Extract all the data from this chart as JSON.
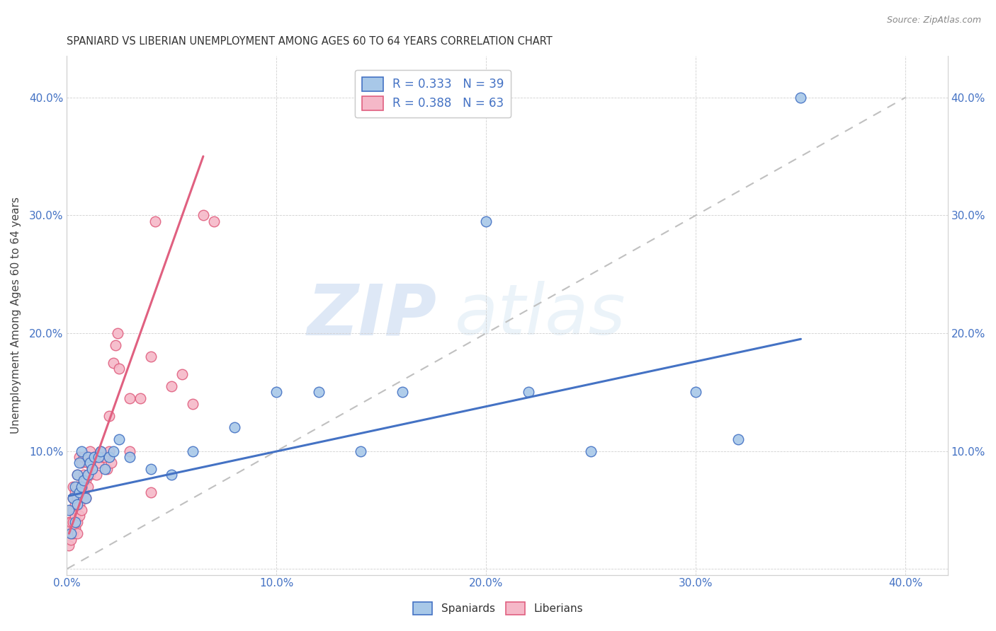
{
  "title": "SPANIARD VS LIBERIAN UNEMPLOYMENT AMONG AGES 60 TO 64 YEARS CORRELATION CHART",
  "source": "Source: ZipAtlas.com",
  "ylabel": "Unemployment Among Ages 60 to 64 years",
  "xlim": [
    0.0,
    0.42
  ],
  "ylim": [
    -0.005,
    0.435
  ],
  "x_ticks": [
    0.0,
    0.1,
    0.2,
    0.3,
    0.4
  ],
  "y_ticks": [
    0.0,
    0.1,
    0.2,
    0.3,
    0.4
  ],
  "x_tick_labels": [
    "0.0%",
    "10.0%",
    "20.0%",
    "30.0%",
    "40.0%"
  ],
  "y_tick_labels": [
    "",
    "10.0%",
    "20.0%",
    "30.0%",
    "40.0%"
  ],
  "spaniards_color": "#a8c8e8",
  "liberians_color": "#f5b8c8",
  "spaniards_R": 0.333,
  "spaniards_N": 39,
  "liberians_R": 0.388,
  "liberians_N": 63,
  "legend_label_spaniards": "Spaniards",
  "legend_label_liberians": "Liberians",
  "trend_color_spaniards": "#4472c4",
  "trend_color_liberians": "#e06080",
  "watermark_zip": "ZIP",
  "watermark_atlas": "atlas",
  "background_color": "#ffffff",
  "spaniards_x": [
    0.001,
    0.002,
    0.003,
    0.004,
    0.004,
    0.005,
    0.005,
    0.006,
    0.006,
    0.007,
    0.007,
    0.008,
    0.009,
    0.01,
    0.01,
    0.011,
    0.012,
    0.013,
    0.015,
    0.016,
    0.018,
    0.02,
    0.022,
    0.025,
    0.03,
    0.04,
    0.05,
    0.06,
    0.08,
    0.1,
    0.12,
    0.14,
    0.16,
    0.2,
    0.22,
    0.25,
    0.3,
    0.32,
    0.35
  ],
  "spaniards_y": [
    0.05,
    0.03,
    0.06,
    0.04,
    0.07,
    0.055,
    0.08,
    0.065,
    0.09,
    0.07,
    0.1,
    0.075,
    0.06,
    0.08,
    0.095,
    0.09,
    0.085,
    0.095,
    0.095,
    0.1,
    0.085,
    0.095,
    0.1,
    0.11,
    0.095,
    0.085,
    0.08,
    0.1,
    0.12,
    0.15,
    0.15,
    0.1,
    0.15,
    0.295,
    0.15,
    0.1,
    0.15,
    0.11,
    0.4
  ],
  "liberians_x": [
    0.001,
    0.001,
    0.001,
    0.002,
    0.002,
    0.002,
    0.002,
    0.003,
    0.003,
    0.003,
    0.003,
    0.003,
    0.004,
    0.004,
    0.004,
    0.004,
    0.005,
    0.005,
    0.005,
    0.005,
    0.005,
    0.006,
    0.006,
    0.006,
    0.006,
    0.007,
    0.007,
    0.007,
    0.008,
    0.008,
    0.008,
    0.009,
    0.009,
    0.01,
    0.01,
    0.011,
    0.011,
    0.012,
    0.013,
    0.014,
    0.015,
    0.016,
    0.017,
    0.018,
    0.019,
    0.02,
    0.02,
    0.021,
    0.022,
    0.023,
    0.024,
    0.025,
    0.03,
    0.03,
    0.035,
    0.04,
    0.04,
    0.042,
    0.05,
    0.055,
    0.06,
    0.065,
    0.07
  ],
  "liberians_y": [
    0.02,
    0.03,
    0.04,
    0.025,
    0.035,
    0.04,
    0.05,
    0.03,
    0.04,
    0.05,
    0.06,
    0.07,
    0.035,
    0.045,
    0.055,
    0.065,
    0.03,
    0.04,
    0.06,
    0.07,
    0.08,
    0.045,
    0.055,
    0.065,
    0.095,
    0.05,
    0.07,
    0.09,
    0.065,
    0.08,
    0.095,
    0.06,
    0.075,
    0.07,
    0.09,
    0.08,
    0.1,
    0.085,
    0.095,
    0.08,
    0.09,
    0.1,
    0.095,
    0.095,
    0.085,
    0.1,
    0.13,
    0.09,
    0.175,
    0.19,
    0.2,
    0.17,
    0.1,
    0.145,
    0.145,
    0.065,
    0.18,
    0.295,
    0.155,
    0.165,
    0.14,
    0.3,
    0.295
  ],
  "sp_trend_x": [
    0.001,
    0.35
  ],
  "sp_trend_y_start": 0.062,
  "sp_trend_y_end": 0.195,
  "lib_trend_x": [
    0.001,
    0.065
  ],
  "lib_trend_y_start": 0.03,
  "lib_trend_y_end": 0.35
}
